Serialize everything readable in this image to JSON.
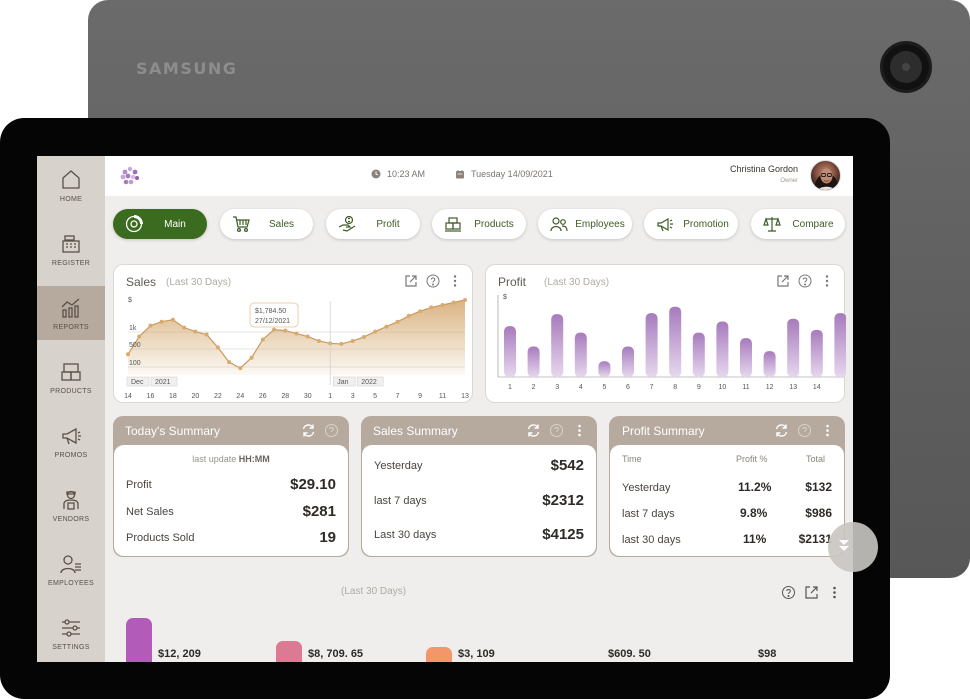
{
  "device": {
    "brand": "SAMSUNG"
  },
  "sidebar": {
    "items": [
      {
        "label": "HOME",
        "icon": "home-icon"
      },
      {
        "label": "REGISTER",
        "icon": "register-icon"
      },
      {
        "label": "REPORTS",
        "icon": "reports-icon",
        "active": true
      },
      {
        "label": "PRODUCTS",
        "icon": "products-icon"
      },
      {
        "label": "PROMOS",
        "icon": "megaphone-icon"
      },
      {
        "label": "VENDORS",
        "icon": "vendor-icon"
      },
      {
        "label": "EMPLOYEES",
        "icon": "employees-icon"
      },
      {
        "label": "SETTINGS",
        "icon": "settings-icon"
      }
    ]
  },
  "header": {
    "time": "10:23 AM",
    "date": "Tuesday 14/09/2021",
    "user_name": "Christina Gordon",
    "user_role": "Owner"
  },
  "tabs": [
    {
      "label": "Main",
      "icon": "dashboard-icon",
      "active": true
    },
    {
      "label": "Sales",
      "icon": "cart-icon"
    },
    {
      "label": "Profit",
      "icon": "money-hand-icon"
    },
    {
      "label": "Products",
      "icon": "boxes-icon"
    },
    {
      "label": "Employees",
      "icon": "people-icon"
    },
    {
      "label": "Promotion",
      "icon": "megaphone-icon"
    },
    {
      "label": "Compare",
      "icon": "scale-icon"
    }
  ],
  "sales_chart": {
    "title": "Sales",
    "subtitle": "(Last 30 Days)",
    "tooltip_value": "$1,784.50",
    "tooltip_date": "27/12/2021",
    "month_labels": [
      "Dec",
      "2021",
      "Jan",
      "2022"
    ]
  },
  "profit_chart": {
    "title": "Profit",
    "subtitle": "(Last 30 Days)"
  },
  "chart_data": [
    {
      "type": "area",
      "title": "Sales",
      "subtitle": "(Last 30 Days)",
      "ylabel": "$",
      "yticks": [
        "1k",
        "500",
        "100"
      ],
      "x": [
        "14",
        "15",
        "16",
        "17",
        "18",
        "19",
        "20",
        "21",
        "22",
        "23",
        "24",
        "25",
        "26",
        "27",
        "28",
        "29",
        "30",
        "31",
        "1",
        "2",
        "3",
        "4",
        "5",
        "6",
        "7",
        "8",
        "9",
        "10",
        "11",
        "12",
        "13"
      ],
      "xtick_labels": [
        "14",
        "16",
        "18",
        "20",
        "22",
        "24",
        "26",
        "28",
        "30",
        "1",
        "3",
        "5",
        "7",
        "9",
        "11",
        "13"
      ],
      "values": [
        420,
        780,
        1000,
        1080,
        1120,
        960,
        880,
        820,
        560,
        260,
        140,
        350,
        720,
        920,
        900,
        840,
        780,
        690,
        640,
        630,
        690,
        770,
        880,
        980,
        1080,
        1200,
        1290,
        1370,
        1420,
        1470,
        1520
      ],
      "ylim": [
        0,
        1500
      ],
      "color": "#d8b07c"
    },
    {
      "type": "bar",
      "title": "Profit",
      "subtitle": "(Last 30 Days)",
      "ylabel": "$",
      "categories": [
        "1",
        "2",
        "3",
        "4",
        "5",
        "6",
        "7",
        "8",
        "9",
        "10",
        "11",
        "12",
        "13",
        "14",
        "15"
      ],
      "xtick_labels": [
        "1",
        "2",
        "3",
        "4",
        "5",
        "6",
        "7",
        "8",
        "9",
        "10",
        "11",
        "12",
        "13",
        "14"
      ],
      "values": [
        55,
        33,
        68,
        48,
        17,
        33,
        69,
        76,
        48,
        60,
        42,
        28,
        63,
        51,
        69
      ],
      "ylim": [
        0,
        80
      ],
      "color": "#a77bbd"
    }
  ],
  "todays_summary": {
    "title": "Today's Summary",
    "last_update_label": "last update",
    "last_update_value": "HH:MM",
    "rows": [
      {
        "label": "Profit",
        "value": "$29.10"
      },
      {
        "label": "Net Sales",
        "value": "$281"
      },
      {
        "label": "Products Sold",
        "value": "19"
      }
    ]
  },
  "sales_summary": {
    "title": "Sales Summary",
    "rows": [
      {
        "label": "Yesterday",
        "value": "$542"
      },
      {
        "label": "last 7 days",
        "value": "$2312"
      },
      {
        "label": "Last 30 days",
        "value": "$4125"
      }
    ]
  },
  "profit_summary": {
    "title": "Profit Summary",
    "headers": [
      "Time",
      "Profit %",
      "Total"
    ],
    "rows": [
      {
        "label": "Yesterday",
        "pct": "11.2%",
        "total": "$132"
      },
      {
        "label": "last 7 days",
        "pct": "9.8%",
        "total": "$986"
      },
      {
        "label": "last 30 days",
        "pct": "11%",
        "total": "$2131"
      }
    ]
  },
  "bottom": {
    "subtitle": "(Last 30 Days)",
    "items": [
      {
        "value": "$12, 209",
        "color": "#b25bb8"
      },
      {
        "value": "$8, 709. 65",
        "color": "#db7a92"
      },
      {
        "value": "$3, 109",
        "color": "#f4956a"
      },
      {
        "value": "$609. 50"
      },
      {
        "value": "$98"
      }
    ]
  }
}
